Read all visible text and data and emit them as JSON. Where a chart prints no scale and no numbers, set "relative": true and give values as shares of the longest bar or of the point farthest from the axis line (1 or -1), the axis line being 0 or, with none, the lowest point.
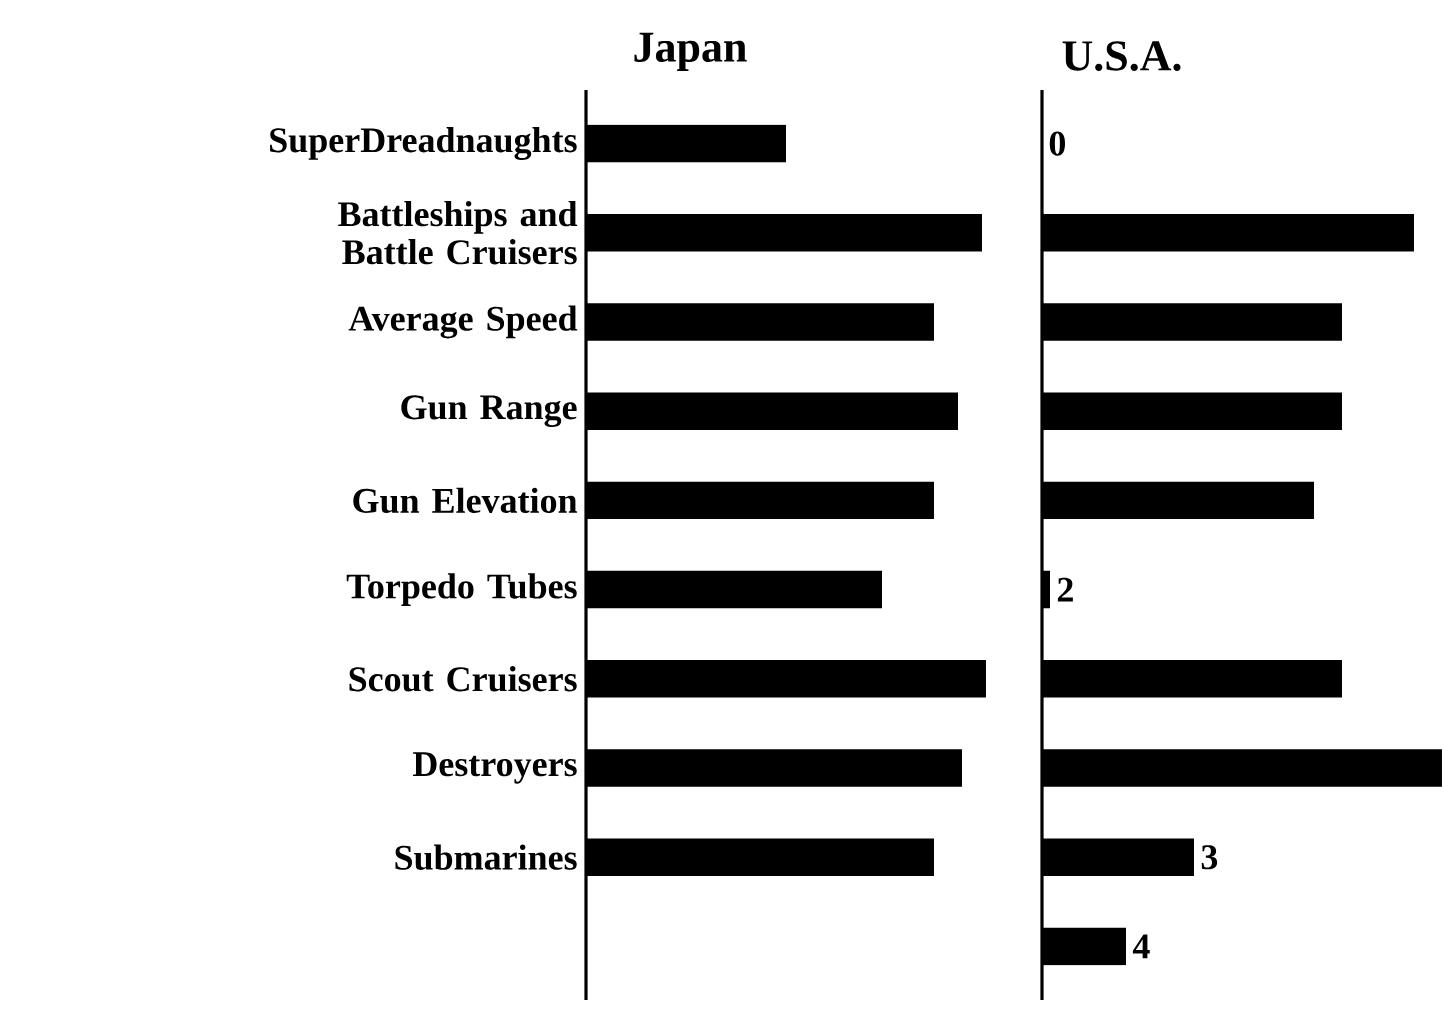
{
  "chart_data": [
    {
      "type": "bar",
      "orientation": "horizontal",
      "relative": true,
      "title": "Japan",
      "color": "#000000",
      "categories": [
        "SuperDreadnaughts",
        "Battleships and Battle Cruisers",
        "Average Speed",
        "Gun Range",
        "Gun Elevation",
        "Torpedo Tubes",
        "Scout Cruisers",
        "Destroyers",
        "Submarines",
        null
      ],
      "values": [
        0.5,
        0.99,
        0.87,
        0.93,
        0.87,
        0.74,
        1,
        0.94,
        0.87,
        null
      ]
    },
    {
      "type": "bar",
      "orientation": "horizontal",
      "relative": true,
      "title": "U.S.A.",
      "color": "#000000",
      "tick_labels": false,
      "categories": [
        "SuperDreadnaughts",
        "Battleships and Battle Cruisers",
        "Average Speed",
        "Gun Range",
        "Gun Elevation",
        "Torpedo Tubes",
        "Scout Cruisers",
        "Destroyers",
        "Submarines",
        null
      ],
      "values": [
        0,
        0.93,
        0.75,
        0.75,
        0.68,
        0.02,
        0.75,
        1,
        0.38,
        0.21
      ],
      "annotations": [
        {
          "text": "0",
          "x": 0,
          "y": "SuperDreadnaughts"
        },
        {
          "text": "2",
          "x": 0.02,
          "y": "Torpedo Tubes"
        },
        {
          "text": "3",
          "x": 0.38,
          "y": "Submarines"
        },
        {
          "text": "4",
          "x": 0.21
        }
      ]
    }
  ]
}
